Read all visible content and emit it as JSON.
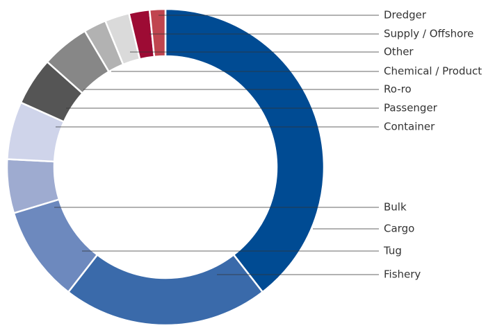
{
  "chart_data": {
    "type": "donut",
    "categories": [
      "Cargo",
      "Fishery",
      "Tug",
      "Bulk",
      "Container",
      "Passenger",
      "Ro-ro",
      "Chemical / Product",
      "Other",
      "Supply / Offshore",
      "Dredger"
    ],
    "values": [
      39.5,
      21,
      9.8,
      5.5,
      5.9,
      4.9,
      4.9,
      2.3,
      2.5,
      2.1,
      1.6
    ],
    "colors": [
      "#004b93",
      "#3a6aaa",
      "#6d89be",
      "#9eabd0",
      "#cfd4ea",
      "#555555",
      "#878787",
      "#b2b2b2",
      "#dadada",
      "#9d0b34",
      "#c0454f"
    ]
  }
}
